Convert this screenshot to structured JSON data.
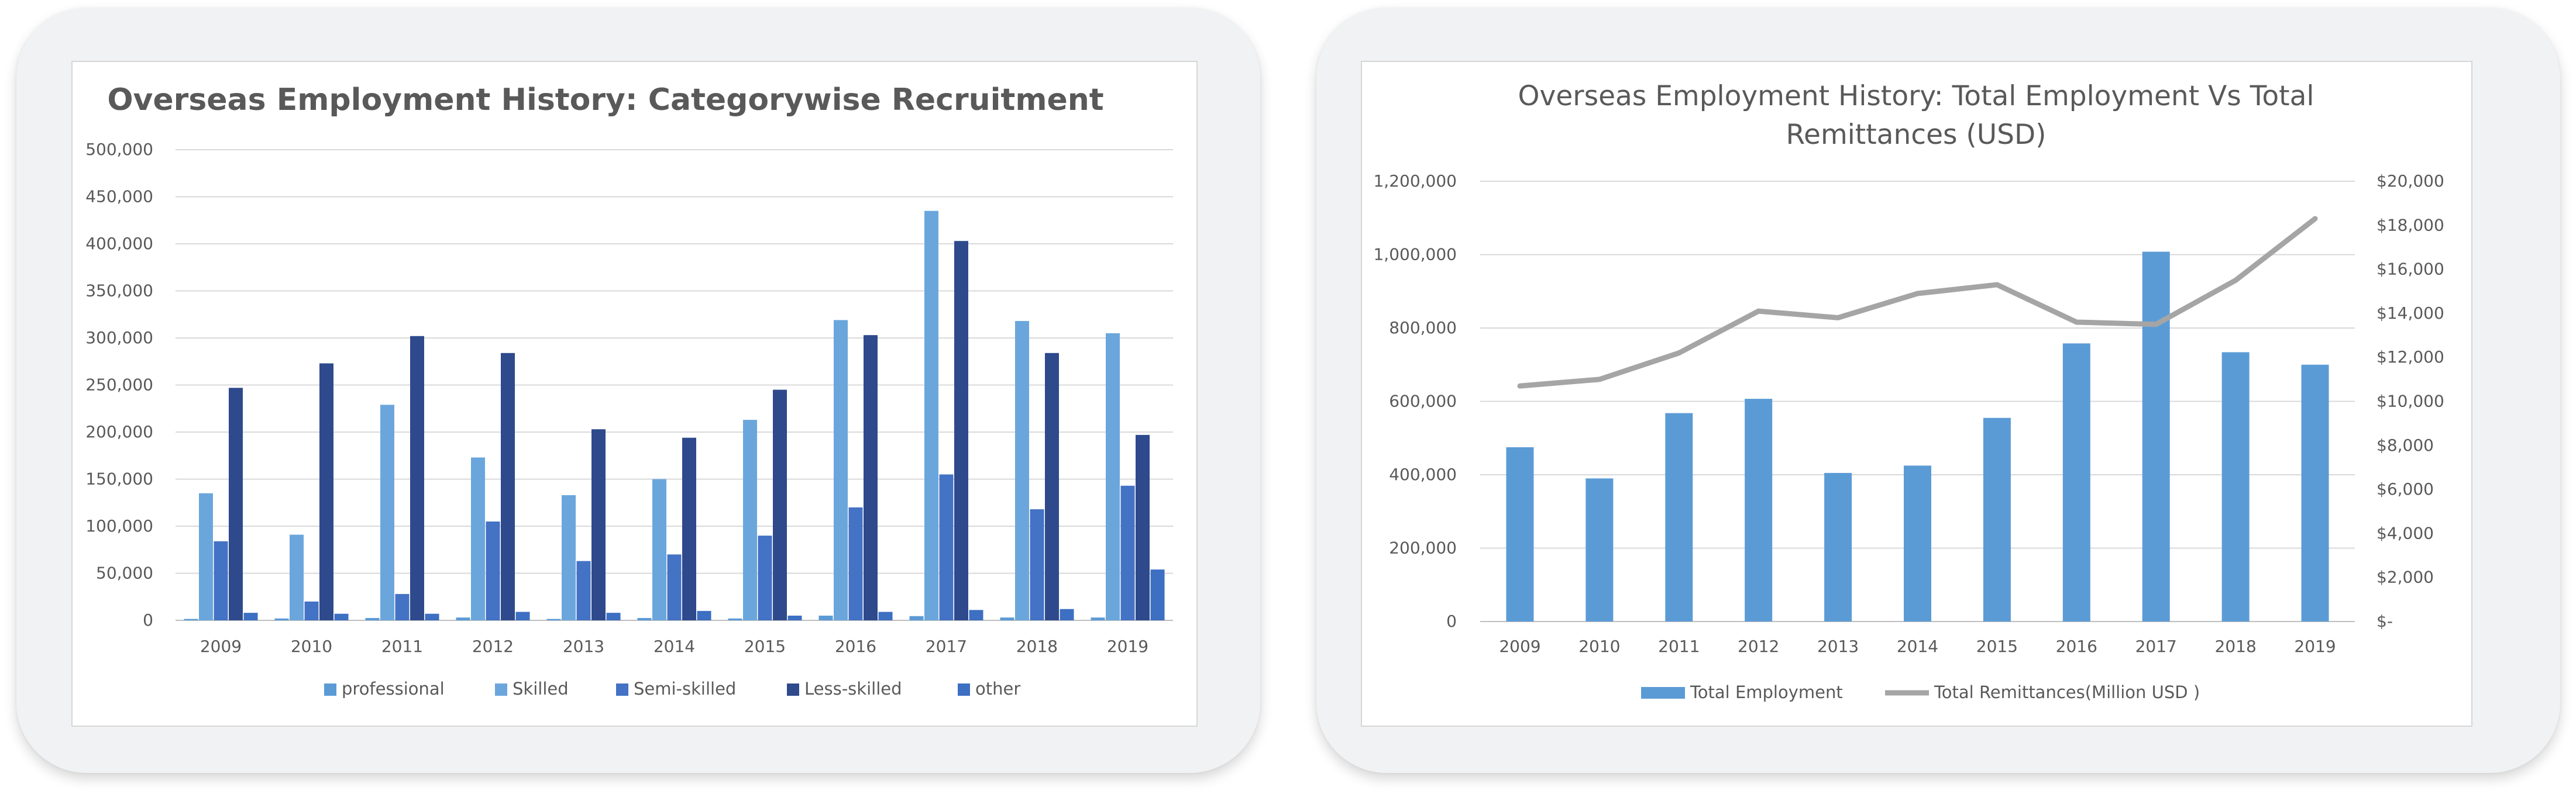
{
  "chart_data": [
    {
      "type": "bar",
      "title": "Overseas Employment History: Categorywise Recruitment",
      "categories": [
        "2009",
        "2010",
        "2011",
        "2012",
        "2013",
        "2014",
        "2015",
        "2016",
        "2017",
        "2018",
        "2019"
      ],
      "ylim": [
        0,
        500000
      ],
      "y_ticks": [
        "0",
        "50,000",
        "100,000",
        "150,000",
        "200,000",
        "250,000",
        "300,000",
        "350,000",
        "400,000",
        "450,000",
        "500,000"
      ],
      "grid": true,
      "legend": "bottom",
      "series": [
        {
          "name": "professional",
          "color": "#5b9bd5",
          "values": [
            1500,
            2000,
            2500,
            3000,
            1500,
            2500,
            2000,
            5000,
            4500,
            3000,
            3000
          ]
        },
        {
          "name": "Skilled",
          "color": "#6aa6dc",
          "values": [
            135000,
            91000,
            229000,
            173000,
            133000,
            150000,
            213000,
            319000,
            435000,
            318000,
            305000
          ]
        },
        {
          "name": "Semi-skilled",
          "color": "#4472c4",
          "values": [
            84000,
            20000,
            28000,
            105000,
            63000,
            70000,
            90000,
            120000,
            155000,
            118000,
            143000
          ]
        },
        {
          "name": "Less-skilled",
          "color": "#2e4a8c",
          "values": [
            247000,
            273000,
            302000,
            284000,
            203000,
            194000,
            245000,
            303000,
            403000,
            284000,
            197000
          ]
        },
        {
          "name": "other",
          "color": "#3d6fc2",
          "values": [
            8000,
            7000,
            7000,
            9000,
            8000,
            10000,
            5000,
            9000,
            11000,
            12000,
            54000
          ]
        }
      ]
    },
    {
      "type": "bar+line",
      "title_lines": [
        "Overseas Employment History: Total Employment Vs Total",
        "Remittances (USD)"
      ],
      "categories": [
        "2009",
        "2010",
        "2011",
        "2012",
        "2013",
        "2014",
        "2015",
        "2016",
        "2017",
        "2018",
        "2019"
      ],
      "ylim": [
        0,
        1200000
      ],
      "y_ticks": [
        "0",
        "200,000",
        "400,000",
        "600,000",
        "800,000",
        "1,000,000",
        "1,200,000"
      ],
      "y2lim": [
        0,
        20000
      ],
      "y2_ticks": [
        "$-",
        "$2,000",
        "$4,000",
        "$6,000",
        "$8,000",
        "$10,000",
        "$12,000",
        "$14,000",
        "$16,000",
        "$18,000",
        "$20,000"
      ],
      "grid": true,
      "legend": "bottom",
      "series": [
        {
          "name": "Total Employment",
          "kind": "bar",
          "axis": "left",
          "color": "#5b9bd5",
          "values": [
            475000,
            390000,
            568000,
            607000,
            405000,
            425000,
            555000,
            758000,
            1008000,
            734000,
            700000
          ]
        },
        {
          "name": "Total Remittances(Million USD )",
          "kind": "line",
          "axis": "right",
          "color": "#a5a5a5",
          "values": [
            10700,
            11000,
            12200,
            14100,
            13800,
            14900,
            15300,
            13600,
            13500,
            15500,
            18300
          ]
        }
      ]
    }
  ]
}
